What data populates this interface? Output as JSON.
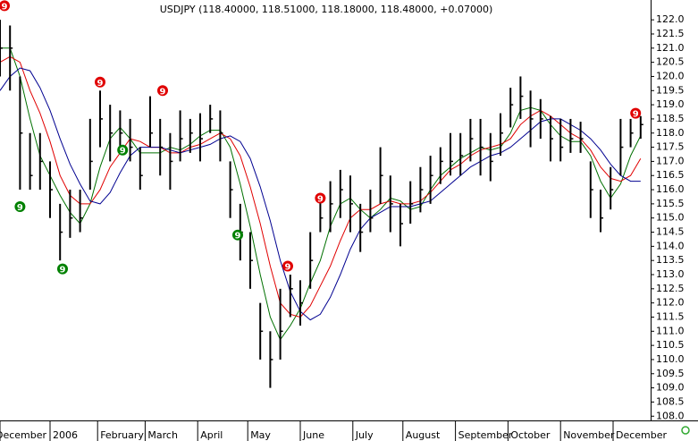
{
  "chart_data": {
    "type": "ohlc",
    "title": "USDJPY (118.40000, 118.51000, 118.18000, 118.48000, +0.07000)",
    "x": [
      0,
      4,
      8,
      12,
      16,
      20,
      24,
      28,
      32,
      36,
      40,
      44,
      48,
      52,
      56,
      60,
      64,
      68,
      72,
      76,
      80,
      84,
      88,
      92,
      96,
      100,
      104,
      108,
      112,
      116,
      120,
      124,
      128,
      132,
      136,
      140,
      144,
      148,
      152,
      156,
      160,
      164,
      168,
      172,
      176,
      180,
      184,
      188,
      192,
      196,
      200,
      204,
      208,
      212,
      216,
      220,
      224,
      228,
      232,
      236,
      240,
      244,
      248,
      252,
      256
    ],
    "high": [
      122,
      121.8,
      120,
      118,
      118,
      117,
      115.5,
      116,
      116,
      118.5,
      119.5,
      119,
      118.8,
      118.5,
      117.5,
      119.3,
      118.5,
      118,
      118.8,
      118.5,
      118.7,
      119,
      118.8,
      117,
      115.5,
      114.5,
      112,
      111,
      112.5,
      113,
      112.8,
      114.5,
      115.8,
      116.3,
      116.7,
      116.5,
      115.5,
      116,
      117.5,
      116.5,
      115.5,
      116.3,
      116.8,
      117.2,
      117.5,
      118,
      118,
      118.5,
      118.5,
      118,
      118.7,
      119.6,
      120,
      119.5,
      119.2,
      118.6,
      118.5,
      118.5,
      118.4,
      117,
      116,
      116.8,
      118.5,
      118.5,
      118.6
    ],
    "low": [
      120,
      119.5,
      116,
      116,
      116,
      115,
      113.5,
      114.3,
      114.5,
      116,
      117.5,
      117,
      117.5,
      117,
      116,
      117.5,
      116.5,
      116,
      117,
      117.3,
      117,
      118,
      117,
      115,
      113.5,
      112.5,
      110,
      109,
      110,
      111.5,
      111.2,
      112.5,
      114.5,
      114.5,
      115,
      114.5,
      113.8,
      114.5,
      115.5,
      114.5,
      114,
      114.8,
      115.2,
      115.5,
      116.2,
      116.5,
      116.5,
      117,
      116.5,
      116.3,
      117.2,
      118.2,
      118.5,
      117.5,
      117.8,
      117,
      117,
      117.3,
      117.3,
      115,
      114.5,
      115.3,
      116.5,
      117.5,
      117.8
    ],
    "close": [
      121,
      121,
      118,
      116.5,
      117,
      116,
      114.5,
      115,
      115,
      117,
      118.5,
      118,
      118,
      117.5,
      116.5,
      118,
      117.5,
      117,
      117.8,
      118,
      117.8,
      118.5,
      118,
      116,
      114.5,
      113.5,
      111,
      110,
      111,
      112.5,
      112,
      113.5,
      115,
      115.5,
      116,
      115.5,
      114.5,
      115,
      116.5,
      115.5,
      114.8,
      115.5,
      116,
      116.5,
      117,
      117,
      117.2,
      117.8,
      117.5,
      117,
      118,
      119,
      119.3,
      118.5,
      118.5,
      117.8,
      117.5,
      117.8,
      117.8,
      116,
      115,
      116,
      117.5,
      118,
      118.3
    ],
    "series": [
      {
        "color": "#007000",
        "values": [
          121,
          121,
          120,
          118.5,
          117.2,
          116.5,
          115.8,
          115.2,
          114.8,
          115.5,
          116.8,
          117.8,
          118.2,
          117.8,
          117.3,
          117.3,
          117.3,
          117.5,
          117.4,
          117.6,
          117.9,
          118.1,
          118.1,
          117.5,
          116.2,
          114.7,
          113,
          111.5,
          110.7,
          111.2,
          111.8,
          112.7,
          113.5,
          114.7,
          115.5,
          115.7,
          115.3,
          115,
          115.3,
          115.7,
          115.6,
          115.3,
          115.4,
          116,
          116.5,
          116.8,
          117.1,
          117.3,
          117.5,
          117.4,
          117.5,
          118,
          118.8,
          118.9,
          118.8,
          118.3,
          117.9,
          117.7,
          117.7,
          117.2,
          116.3,
          115.7,
          116.2,
          117.2,
          117.9
        ]
      },
      {
        "color": "#e00000",
        "values": [
          120.5,
          120.7,
          120.5,
          119.5,
          118.7,
          117.7,
          116.5,
          115.8,
          115.5,
          115.5,
          116,
          116.8,
          117.3,
          117.8,
          117.7,
          117.5,
          117.5,
          117.3,
          117.3,
          117.5,
          117.6,
          117.8,
          118,
          117.8,
          117.2,
          116.1,
          114.8,
          113.3,
          112,
          111.6,
          111.5,
          111.9,
          112.6,
          113.3,
          114.2,
          115,
          115.3,
          115.3,
          115.5,
          115.6,
          115.5,
          115.5,
          115.6,
          115.9,
          116.3,
          116.7,
          116.9,
          117.2,
          117.4,
          117.5,
          117.6,
          117.8,
          118.3,
          118.6,
          118.8,
          118.6,
          118.3,
          118,
          117.8,
          117.4,
          116.8,
          116.4,
          116.3,
          116.5,
          117.1
        ]
      },
      {
        "color": "#000090",
        "values": [
          119.5,
          120,
          120.3,
          120.2,
          119.6,
          118.8,
          117.8,
          116.9,
          116.2,
          115.6,
          115.5,
          115.9,
          116.6,
          117.2,
          117.5,
          117.5,
          117.5,
          117.4,
          117.3,
          117.4,
          117.5,
          117.6,
          117.8,
          117.9,
          117.7,
          117.1,
          116.1,
          114.9,
          113.5,
          112.4,
          111.7,
          111.4,
          111.6,
          112.2,
          113,
          113.9,
          114.6,
          115,
          115.2,
          115.4,
          115.4,
          115.4,
          115.5,
          115.6,
          115.9,
          116.2,
          116.5,
          116.8,
          117,
          117.2,
          117.3,
          117.5,
          117.8,
          118.1,
          118.4,
          118.5,
          118.5,
          118.3,
          118.1,
          117.8,
          117.4,
          116.9,
          116.5,
          116.3,
          116.3
        ]
      }
    ],
    "annotations": [
      {
        "x": 0,
        "y": 122.5,
        "label": "9",
        "color": "#e00000"
      },
      {
        "x": 40,
        "y": 119.8,
        "label": "9",
        "color": "#e00000"
      },
      {
        "x": 65,
        "y": 119.5,
        "label": "9",
        "color": "#e00000"
      },
      {
        "x": 115,
        "y": 113.3,
        "label": "9",
        "color": "#e00000"
      },
      {
        "x": 128,
        "y": 115.7,
        "label": "9",
        "color": "#e00000"
      },
      {
        "x": 254,
        "y": 118.7,
        "label": "9",
        "color": "#e00000"
      },
      {
        "x": 8,
        "y": 115.4,
        "label": "9",
        "color": "#008000"
      },
      {
        "x": 25,
        "y": 113.2,
        "label": "9",
        "color": "#008000"
      },
      {
        "x": 49,
        "y": 117.4,
        "label": "9",
        "color": "#008000"
      },
      {
        "x": 95,
        "y": 114.4,
        "label": "9",
        "color": "#008000"
      }
    ],
    "xlim": [
      0,
      260
    ],
    "xticks": [
      {
        "value": 0,
        "label": "December"
      },
      {
        "value": 20,
        "label": "2006"
      },
      {
        "value": 39,
        "label": "February"
      },
      {
        "value": 58,
        "label": "March"
      },
      {
        "value": 79,
        "label": "April"
      },
      {
        "value": 99,
        "label": "May"
      },
      {
        "value": 120,
        "label": "June"
      },
      {
        "value": 141,
        "label": "July"
      },
      {
        "value": 161,
        "label": "August"
      },
      {
        "value": 182,
        "label": "September"
      },
      {
        "value": 203,
        "label": "October"
      },
      {
        "value": 224,
        "label": "November"
      },
      {
        "value": 245,
        "label": "December"
      }
    ],
    "ylim": [
      107.85,
      122.7
    ],
    "yticks": [
      {
        "value": 108,
        "label": "108.0"
      },
      108.5,
      {
        "value": 109,
        "label": "109.0"
      },
      109.5,
      {
        "value": 110,
        "label": "110.0"
      },
      110.5,
      {
        "value": 111,
        "label": "111.0"
      },
      111.5,
      {
        "value": 112,
        "label": "112.0"
      },
      112.5,
      {
        "value": 113,
        "label": "113.0"
      },
      113.5,
      {
        "value": 114,
        "label": "114.0"
      },
      114.5,
      {
        "value": 115,
        "label": "115.0"
      },
      115.5,
      {
        "value": 116,
        "label": "116.0"
      },
      116.5,
      {
        "value": 117,
        "label": "117.0"
      },
      117.5,
      {
        "value": 118,
        "label": "118.0"
      },
      118.5,
      {
        "value": 119,
        "label": "119.0"
      },
      119.5,
      {
        "value": 120,
        "label": "120.0"
      },
      120.5,
      {
        "value": 121,
        "label": "121.0"
      },
      121.5,
      {
        "value": 122,
        "label": "122.0"
      }
    ]
  }
}
